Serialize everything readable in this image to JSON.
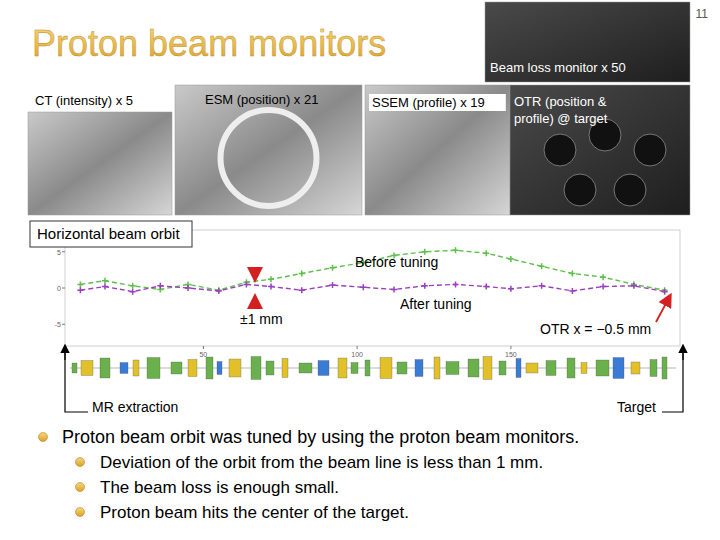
{
  "title": "Proton beam monitors",
  "page_number": "11",
  "photos": [
    {
      "label": "CT (intensity) x 5"
    },
    {
      "label": "ESM (position) x 21"
    },
    {
      "label": "SSEM (profile) x 19"
    },
    {
      "label": "Beam loss monitor x 50"
    },
    {
      "label": "OTR (position & profile) @ target"
    }
  ],
  "chart_data": {
    "type": "line",
    "title": "Horizontal beam orbit",
    "x": [
      10,
      18,
      27,
      36,
      45,
      55,
      64,
      72,
      82,
      92,
      102,
      112,
      122,
      132,
      142,
      150,
      160,
      170,
      180,
      190,
      200
    ],
    "series": [
      {
        "name": "Before tuning",
        "color": "#5cc04a",
        "line_style": "dashed",
        "marker": "plus",
        "values": [
          0.5,
          1,
          0.3,
          -0.2,
          0.5,
          -0.3,
          0.8,
          1.2,
          2,
          2.8,
          3.5,
          4.5,
          5,
          5.2,
          4.8,
          4,
          3,
          2,
          1.5,
          0.5,
          -0.3
        ]
      },
      {
        "name": "After tuning",
        "color": "#9b3fbf",
        "line_style": "dashed",
        "marker": "plus",
        "values": [
          -0.3,
          0.2,
          -0.5,
          0.3,
          0,
          -0.4,
          0.5,
          0.2,
          -0.3,
          0.4,
          0.1,
          -0.2,
          0.3,
          0.5,
          0.2,
          -0.1,
          0.3,
          -0.4,
          0.2,
          0.3,
          -0.5
        ]
      }
    ],
    "xlim": [
      5,
      205
    ],
    "xticks": [
      50,
      100,
      150
    ],
    "ylim": [
      -8,
      8
    ],
    "yticks": [
      -5,
      0,
      5
    ],
    "grid": false,
    "annotations": [
      "±1 mm",
      "OTR x = −0.5 mm",
      "MR extraction",
      "Target"
    ]
  },
  "bullets": {
    "main": "Proton beam orbit was tuned by using the proton beam monitors.",
    "sub": [
      "Deviation of the orbit from the beam line is less than 1 mm.",
      "The beam loss is enough small.",
      "Proton beam hits the center of the target."
    ]
  }
}
